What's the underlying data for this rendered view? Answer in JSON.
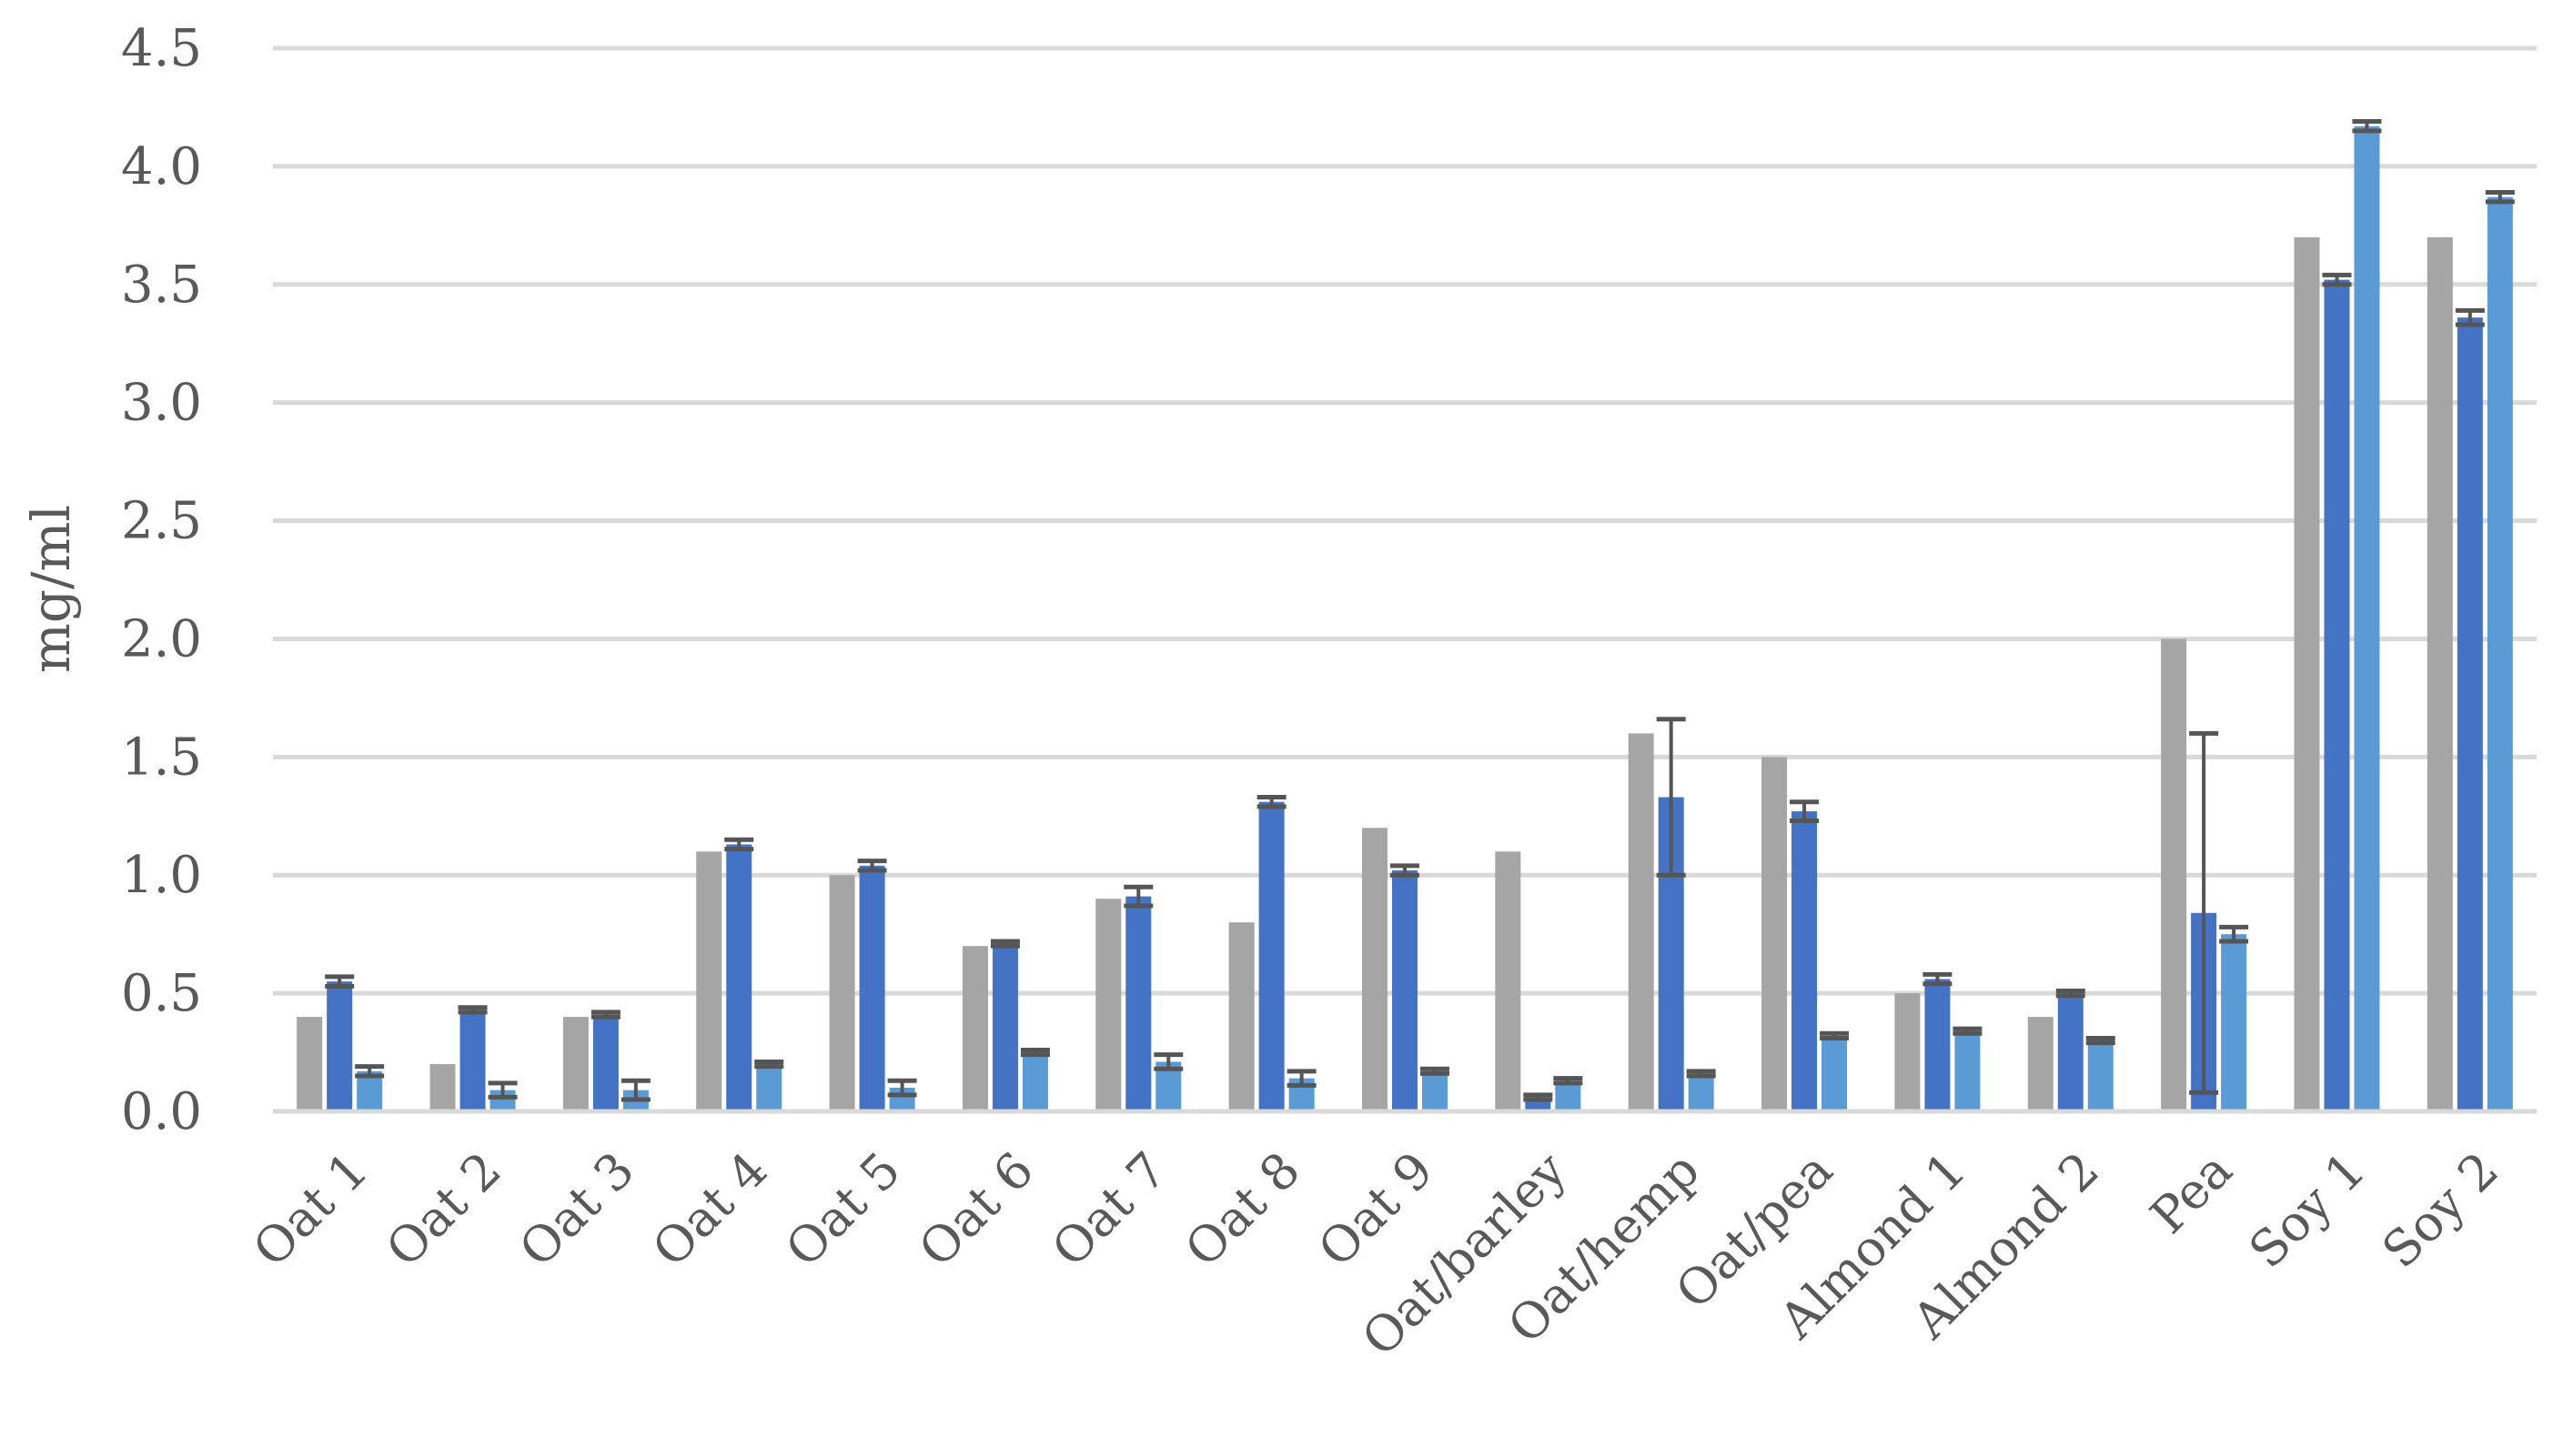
{
  "chart_data": {
    "type": "bar",
    "ylabel": "mg/ml",
    "ylim": [
      0,
      4.5
    ],
    "yticks": [
      "0.0",
      "0.5",
      "1.0",
      "1.5",
      "2.0",
      "2.5",
      "3.0",
      "3.5",
      "4.0",
      "4.5"
    ],
    "grid": true,
    "categories": [
      "Oat 1",
      "Oat 2",
      "Oat 3",
      "Oat 4",
      "Oat 5",
      "Oat 6",
      "Oat 7",
      "Oat 8",
      "Oat 9",
      "Oat/barley",
      "Oat/hemp",
      "Oat/pea",
      "Almond 1",
      "Almond 2",
      "Pea",
      "Soy 1",
      "Soy 2"
    ],
    "series": [
      {
        "color": "#a5a5a5",
        "values": [
          0.4,
          0.2,
          0.4,
          1.1,
          1.0,
          0.7,
          0.9,
          0.8,
          1.2,
          1.1,
          1.6,
          1.5,
          0.5,
          0.4,
          2.0,
          3.7,
          3.7
        ],
        "errors": [
          null,
          null,
          null,
          null,
          null,
          null,
          null,
          null,
          null,
          null,
          null,
          null,
          null,
          null,
          null,
          null,
          null
        ]
      },
      {
        "color": "#4472c4",
        "values": [
          0.55,
          0.43,
          0.41,
          1.13,
          1.04,
          0.71,
          0.91,
          1.31,
          1.02,
          0.06,
          1.33,
          1.27,
          0.56,
          0.5,
          0.84,
          3.52,
          3.36
        ],
        "errors": [
          0.02,
          0.01,
          0.01,
          0.02,
          0.02,
          0.01,
          0.04,
          0.02,
          0.02,
          0.01,
          0.33,
          0.04,
          0.02,
          0.01,
          0.76,
          0.02,
          0.03
        ]
      },
      {
        "color": "#5b9bd5",
        "values": [
          0.17,
          0.09,
          0.09,
          0.2,
          0.1,
          0.25,
          0.21,
          0.14,
          0.17,
          0.13,
          0.16,
          0.32,
          0.34,
          0.3,
          0.75,
          4.17,
          3.87
        ],
        "errors": [
          0.02,
          0.03,
          0.04,
          0.01,
          0.03,
          0.01,
          0.03,
          0.03,
          0.01,
          0.01,
          0.01,
          0.01,
          0.01,
          0.01,
          0.03,
          0.02,
          0.02
        ]
      }
    ]
  }
}
